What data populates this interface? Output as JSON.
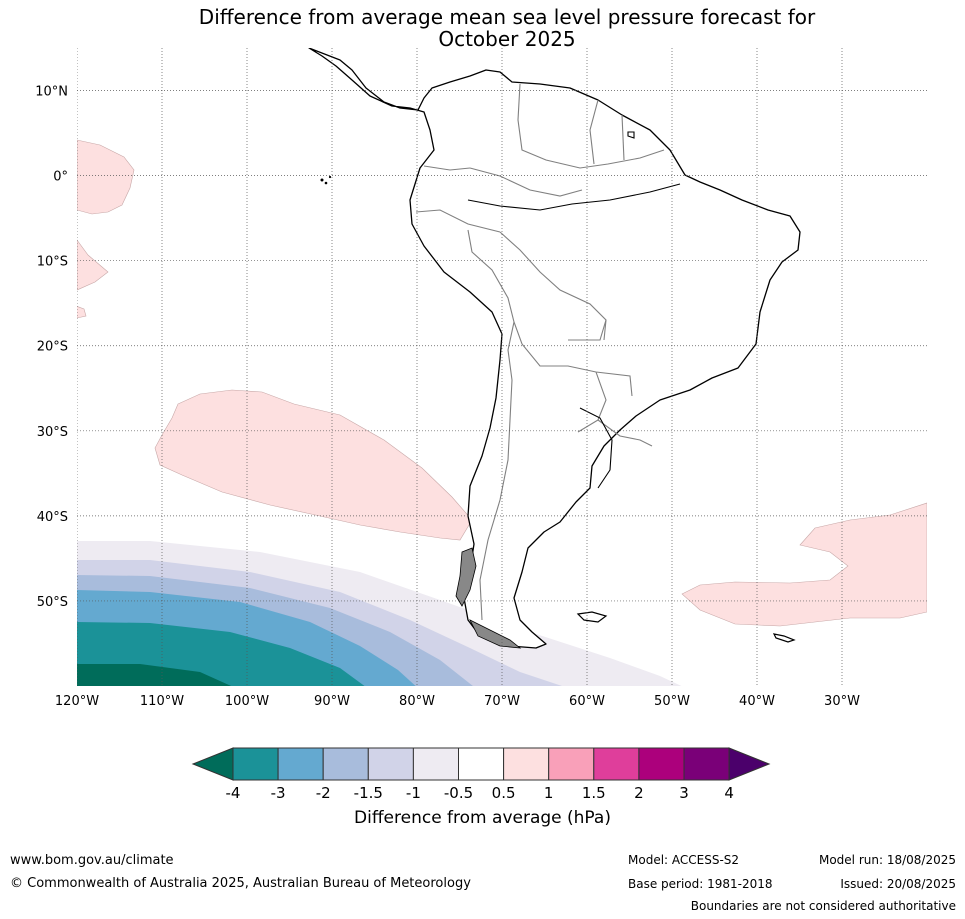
{
  "title_line1": "Difference from average mean sea level pressure forecast for",
  "title_line2": "October 2025",
  "lat_labels": [
    {
      "text": "10°N",
      "lat": 10
    },
    {
      "text": "0°",
      "lat": 0
    },
    {
      "text": "10°S",
      "lat": -10
    },
    {
      "text": "20°S",
      "lat": -20
    },
    {
      "text": "30°S",
      "lat": -30
    },
    {
      "text": "40°S",
      "lat": -40
    },
    {
      "text": "50°S",
      "lat": -50
    }
  ],
  "lon_labels": [
    {
      "text": "120°W",
      "lon": -120
    },
    {
      "text": "110°W",
      "lon": -110
    },
    {
      "text": "100°W",
      "lon": -100
    },
    {
      "text": "90°W",
      "lon": -90
    },
    {
      "text": "80°W",
      "lon": -80
    },
    {
      "text": "70°W",
      "lon": -70
    },
    {
      "text": "60°W",
      "lon": -60
    },
    {
      "text": "50°W",
      "lon": -50
    },
    {
      "text": "40°W",
      "lon": -40
    },
    {
      "text": "30°W",
      "lon": -30
    }
  ],
  "map_extent": {
    "lon_min": -120,
    "lon_max": -20,
    "lat_min": -60,
    "lat_max": 15
  },
  "colorbar": {
    "tick_labels": [
      "-4",
      "-3",
      "-2",
      "-1.5",
      "-1",
      "-0.5",
      "0.5",
      "1",
      "1.5",
      "2",
      "3",
      "4"
    ],
    "colors": [
      "#006c5a",
      "#1b9298",
      "#64a9d0",
      "#a8bcdc",
      "#d1d3e8",
      "#eeebf2",
      "#ffffff",
      "#fde0e0",
      "#f9a0b9",
      "#df3e9b",
      "#ac007c",
      "#7a0078",
      "#4b006b"
    ],
    "label": "Difference from average (hPa)"
  },
  "footer": {
    "website": "www.bom.gov.au/climate",
    "copyright": "© Commonwealth of Australia 2025, Australian Bureau of Meteorology",
    "model": "Model: ACCESS-S2",
    "base_period": "Base period: 1981-2018",
    "model_run": "Model run: 18/08/2025",
    "issued": "Issued: 20/08/2025",
    "disclaimer": "Boundaries are not considered authoritative"
  }
}
